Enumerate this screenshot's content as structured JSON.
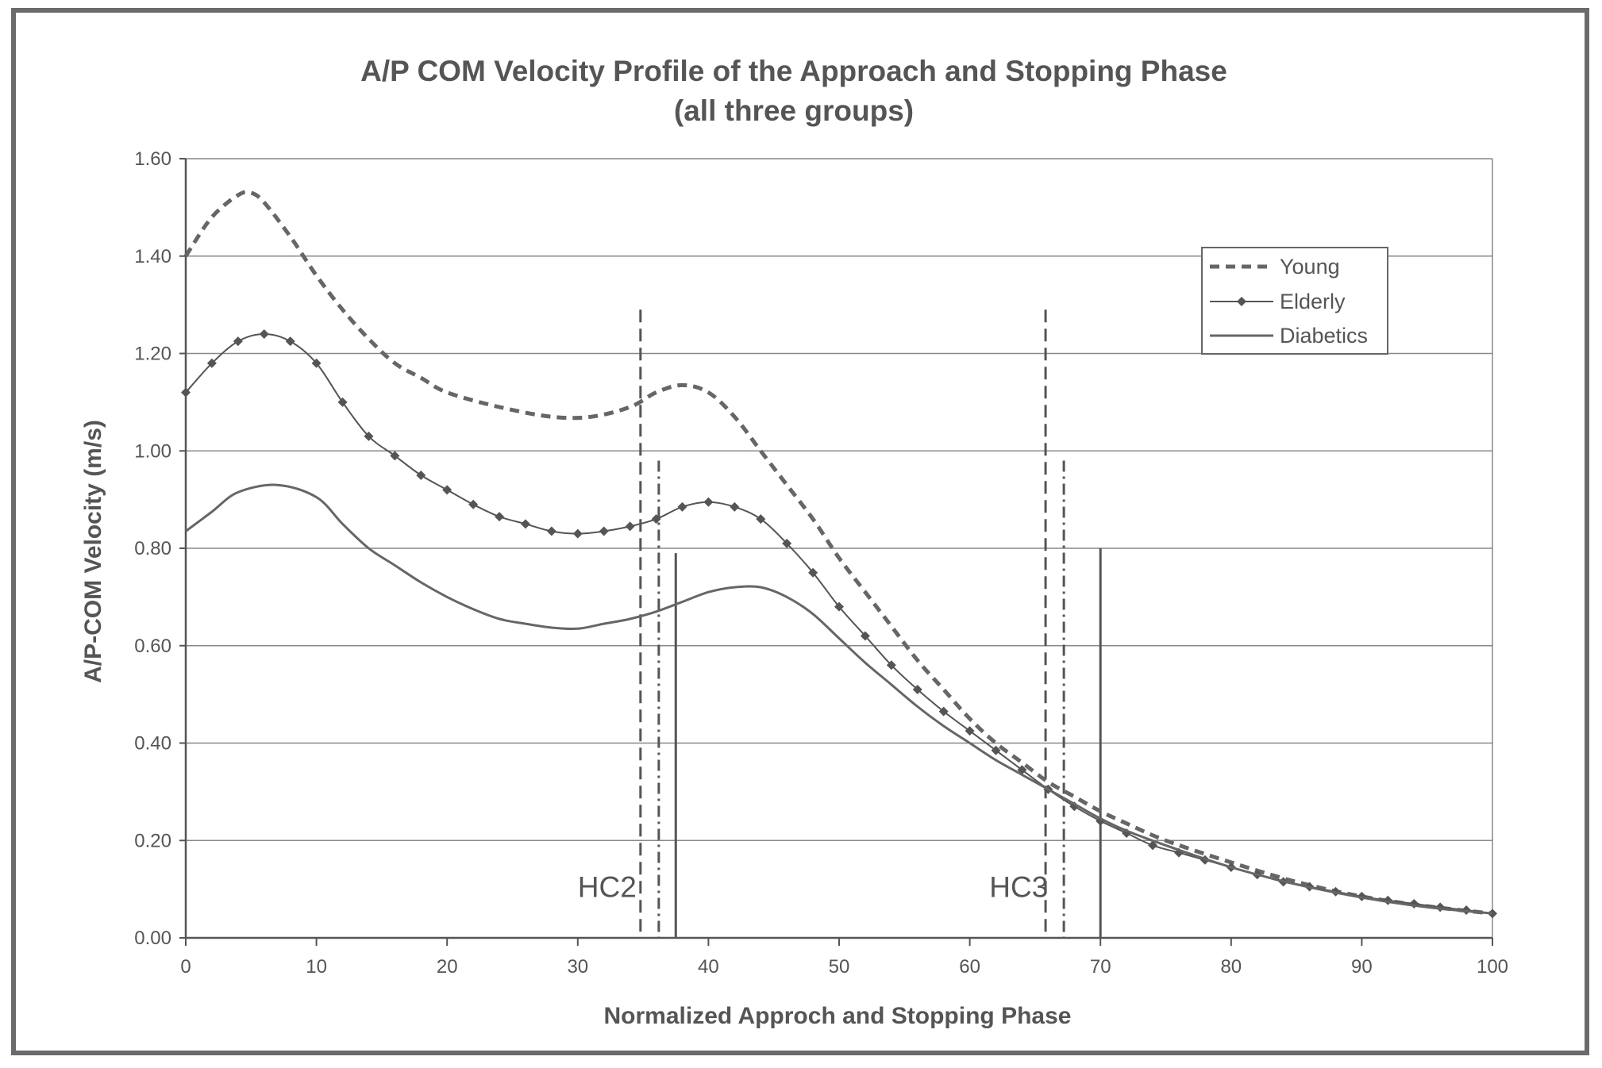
{
  "chart_data": {
    "type": "line",
    "title": "A/P COM Velocity Profile of the Approach and Stopping Phase",
    "subtitle": "(all three groups)",
    "xlabel": "Normalized Approch and Stopping Phase",
    "ylabel": "A/P-COM Velocity (m/s)",
    "xlim": [
      0,
      100
    ],
    "ylim": [
      0,
      1.6
    ],
    "x_ticks": [
      "0",
      "10",
      "20",
      "30",
      "40",
      "50",
      "60",
      "70",
      "80",
      "90",
      "100"
    ],
    "y_ticks": [
      "0.00",
      "0.20",
      "0.40",
      "0.60",
      "0.80",
      "1.00",
      "1.20",
      "1.40",
      "1.60"
    ],
    "grid": "horizontal",
    "legend": "top-right",
    "series": [
      {
        "name": "Young",
        "style": "dashed",
        "color": "#666666",
        "points": [
          [
            0,
            1.4
          ],
          [
            2,
            1.48
          ],
          [
            4,
            1.525
          ],
          [
            5,
            1.53
          ],
          [
            6,
            1.51
          ],
          [
            8,
            1.44
          ],
          [
            10,
            1.36
          ],
          [
            12,
            1.29
          ],
          [
            14,
            1.23
          ],
          [
            16,
            1.18
          ],
          [
            18,
            1.15
          ],
          [
            20,
            1.12
          ],
          [
            24,
            1.09
          ],
          [
            28,
            1.07
          ],
          [
            31,
            1.07
          ],
          [
            34,
            1.09
          ],
          [
            36,
            1.12
          ],
          [
            38,
            1.135
          ],
          [
            40,
            1.12
          ],
          [
            42,
            1.07
          ],
          [
            44,
            1.0
          ],
          [
            46,
            0.93
          ],
          [
            48,
            0.86
          ],
          [
            50,
            0.78
          ],
          [
            52,
            0.71
          ],
          [
            54,
            0.64
          ],
          [
            56,
            0.57
          ],
          [
            58,
            0.51
          ],
          [
            60,
            0.45
          ],
          [
            62,
            0.4
          ],
          [
            64,
            0.36
          ],
          [
            66,
            0.32
          ],
          [
            68,
            0.29
          ],
          [
            70,
            0.26
          ],
          [
            72,
            0.235
          ],
          [
            75,
            0.2
          ],
          [
            80,
            0.155
          ],
          [
            85,
            0.115
          ],
          [
            90,
            0.085
          ],
          [
            95,
            0.065
          ],
          [
            100,
            0.05
          ]
        ]
      },
      {
        "name": "Elderly",
        "style": "solid-markers",
        "color": "#555555",
        "points": [
          [
            0,
            1.12
          ],
          [
            2,
            1.18
          ],
          [
            4,
            1.225
          ],
          [
            6,
            1.24
          ],
          [
            8,
            1.225
          ],
          [
            10,
            1.18
          ],
          [
            12,
            1.1
          ],
          [
            14,
            1.03
          ],
          [
            16,
            0.99
          ],
          [
            18,
            0.95
          ],
          [
            20,
            0.92
          ],
          [
            22,
            0.89
          ],
          [
            24,
            0.865
          ],
          [
            26,
            0.85
          ],
          [
            28,
            0.835
          ],
          [
            30,
            0.83
          ],
          [
            32,
            0.835
          ],
          [
            34,
            0.845
          ],
          [
            36,
            0.86
          ],
          [
            38,
            0.885
          ],
          [
            40,
            0.895
          ],
          [
            42,
            0.885
          ],
          [
            44,
            0.86
          ],
          [
            46,
            0.81
          ],
          [
            48,
            0.75
          ],
          [
            50,
            0.68
          ],
          [
            52,
            0.62
          ],
          [
            54,
            0.56
          ],
          [
            56,
            0.51
          ],
          [
            58,
            0.465
          ],
          [
            60,
            0.425
          ],
          [
            62,
            0.385
          ],
          [
            64,
            0.345
          ],
          [
            66,
            0.305
          ],
          [
            68,
            0.27
          ],
          [
            70,
            0.24
          ],
          [
            72,
            0.215
          ],
          [
            74,
            0.19
          ],
          [
            76,
            0.175
          ],
          [
            78,
            0.16
          ],
          [
            80,
            0.145
          ],
          [
            82,
            0.13
          ],
          [
            84,
            0.115
          ],
          [
            86,
            0.105
          ],
          [
            88,
            0.095
          ],
          [
            90,
            0.085
          ],
          [
            92,
            0.077
          ],
          [
            94,
            0.07
          ],
          [
            96,
            0.063
          ],
          [
            98,
            0.057
          ],
          [
            100,
            0.05
          ]
        ]
      },
      {
        "name": "Diabetics",
        "style": "solid",
        "color": "#666666",
        "points": [
          [
            0,
            0.835
          ],
          [
            2,
            0.875
          ],
          [
            4,
            0.915
          ],
          [
            7,
            0.93
          ],
          [
            10,
            0.905
          ],
          [
            12,
            0.85
          ],
          [
            14,
            0.8
          ],
          [
            16,
            0.765
          ],
          [
            18,
            0.73
          ],
          [
            20,
            0.7
          ],
          [
            22,
            0.675
          ],
          [
            24,
            0.655
          ],
          [
            26,
            0.645
          ],
          [
            28,
            0.637
          ],
          [
            30,
            0.635
          ],
          [
            32,
            0.645
          ],
          [
            34,
            0.655
          ],
          [
            36,
            0.67
          ],
          [
            38,
            0.69
          ],
          [
            40,
            0.71
          ],
          [
            42,
            0.72
          ],
          [
            44,
            0.72
          ],
          [
            46,
            0.7
          ],
          [
            48,
            0.665
          ],
          [
            50,
            0.615
          ],
          [
            52,
            0.565
          ],
          [
            54,
            0.52
          ],
          [
            56,
            0.475
          ],
          [
            58,
            0.435
          ],
          [
            60,
            0.4
          ],
          [
            62,
            0.365
          ],
          [
            64,
            0.335
          ],
          [
            66,
            0.305
          ],
          [
            68,
            0.275
          ],
          [
            70,
            0.245
          ],
          [
            72,
            0.22
          ],
          [
            75,
            0.19
          ],
          [
            80,
            0.145
          ],
          [
            85,
            0.11
          ],
          [
            90,
            0.083
          ],
          [
            95,
            0.063
          ],
          [
            100,
            0.05
          ]
        ]
      }
    ],
    "markers": [
      {
        "label": "HC2",
        "lines": [
          {
            "x": 34.8,
            "y_top": 1.29,
            "style": "dashed"
          },
          {
            "x": 36.2,
            "y_top": 0.98,
            "style": "dashdot"
          },
          {
            "x": 37.5,
            "y_top": 0.79,
            "style": "solid"
          }
        ]
      },
      {
        "label": "HC3",
        "lines": [
          {
            "x": 65.8,
            "y_top": 1.29,
            "style": "dashed"
          },
          {
            "x": 67.2,
            "y_top": 0.98,
            "style": "dashdot"
          },
          {
            "x": 70.0,
            "y_top": 0.8,
            "style": "solid"
          }
        ]
      }
    ],
    "annotations": [
      {
        "text": "HC2",
        "x": 30.0,
        "y": 0.1
      },
      {
        "text": "HC3",
        "x": 61.5,
        "y": 0.1
      }
    ]
  }
}
